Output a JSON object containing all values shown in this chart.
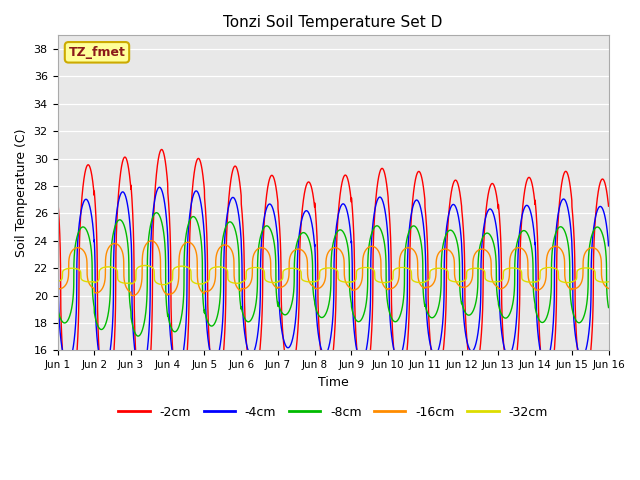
{
  "title": "Tonzi Soil Temperature Set D",
  "xlabel": "Time",
  "ylabel": "Soil Temperature (C)",
  "ylim": [
    16,
    39
  ],
  "xlim": [
    0,
    15
  ],
  "xtick_labels": [
    "Jun 1",
    "Jun 2",
    "Jun 3",
    "Jun 4",
    "Jun 5",
    "Jun 6",
    "Jun 7",
    "Jun 8",
    "Jun 9",
    "Jun 10",
    "Jun 11",
    "Jun 12",
    "Jun 13",
    "Jun 14",
    "Jun 15",
    "Jun 16"
  ],
  "ytick_vals": [
    16,
    18,
    20,
    22,
    24,
    26,
    28,
    30,
    32,
    34,
    36,
    38
  ],
  "annotation_text": "TZ_fmet",
  "colors": {
    "-2cm": "#FF0000",
    "-4cm": "#0000FF",
    "-8cm": "#00BB00",
    "-16cm": "#FF8C00",
    "-32cm": "#DDDD00"
  },
  "legend_labels": [
    "-2cm",
    "-4cm",
    "-8cm",
    "-16cm",
    "-32cm"
  ],
  "bg_color": "#E8E8E8",
  "n_days": 15,
  "ppd": 480,
  "base_temp": 21.0
}
